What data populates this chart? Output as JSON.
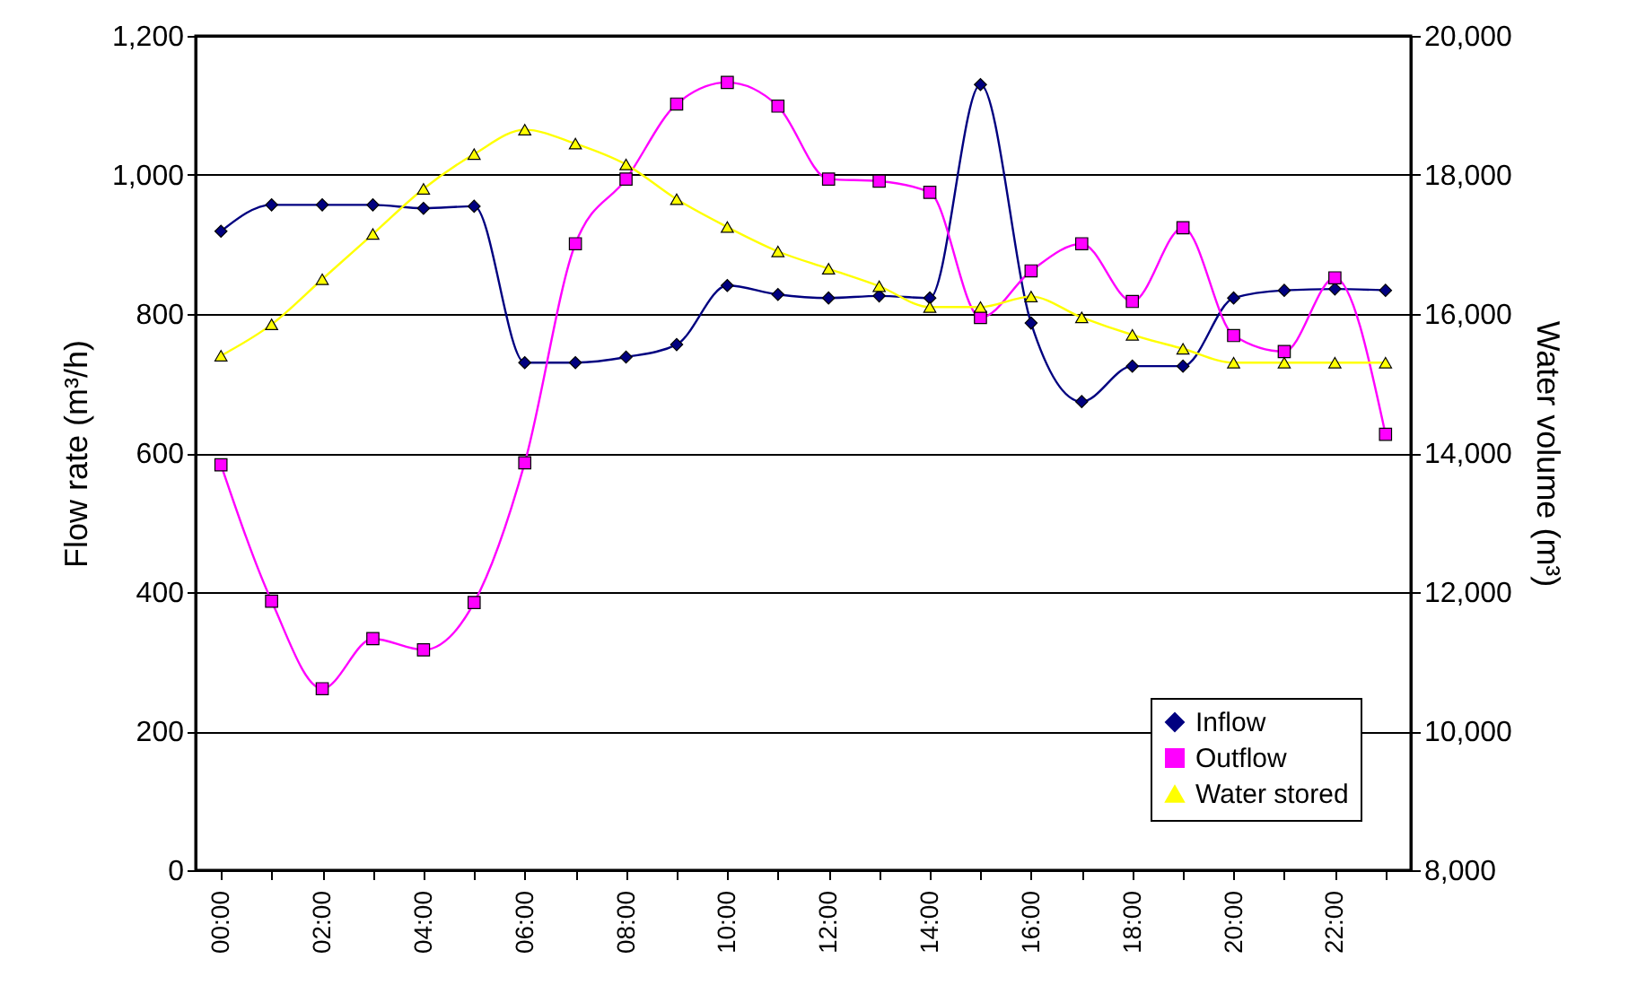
{
  "chart_data": {
    "type": "line",
    "xlabel": null,
    "ylabel": "Flow rate (m³/h)",
    "y2label": "Water volume (m³)",
    "categories": [
      "00:00",
      null,
      "02:00",
      null,
      "04:00",
      null,
      "06:00",
      null,
      "08:00",
      null,
      "10:00",
      null,
      "12:00",
      null,
      "14:00",
      null,
      "16:00",
      null,
      "18:00",
      null,
      "20:00",
      null,
      "22:00",
      null
    ],
    "series": [
      {
        "name": "Inflow",
        "color": "#000080",
        "marker": "diamond",
        "values": [
          919,
          957,
          957,
          957,
          952,
          955,
          730,
          730,
          738,
          756,
          841,
          828,
          823,
          826,
          823,
          1130,
          787,
          674,
          725,
          725,
          823,
          834,
          836,
          834
        ]
      },
      {
        "name": "Outflow",
        "color": "#ff00ff",
        "marker": "square",
        "values": [
          583,
          387,
          261,
          333,
          317,
          385,
          586,
          901,
          994,
          1102,
          1133,
          1099,
          994,
          991,
          975,
          795,
          862,
          901,
          818,
          924,
          769,
          746,
          852,
          627
        ]
      },
      {
        "name": "Water stored",
        "color": "#ffff00",
        "marker": "triangle",
        "axis": "y2",
        "values": [
          15400,
          15850,
          16500,
          17150,
          17800,
          18300,
          18650,
          18450,
          18150,
          17650,
          17250,
          16900,
          16650,
          16400,
          16100,
          16100,
          16250,
          15950,
          15700,
          15500,
          15300,
          15300,
          15300,
          15300
        ]
      }
    ],
    "ylim": [
      0,
      1200
    ],
    "yticks": [
      0,
      200,
      400,
      600,
      800,
      {
        "value": 1000,
        "label": "1,000"
      },
      {
        "value": 1200,
        "label": "1,200"
      }
    ],
    "y2lim": [
      8000,
      20000
    ],
    "y2ticks": [
      {
        "value": 8000,
        "label": "8,000"
      },
      {
        "value": 10000,
        "label": "10,000"
      },
      {
        "value": 12000,
        "label": "12,000"
      },
      {
        "value": 14000,
        "label": "14,000"
      },
      {
        "value": 16000,
        "label": "16,000"
      },
      {
        "value": 18000,
        "label": "18,000"
      },
      {
        "value": 20000,
        "label": "20,000"
      }
    ],
    "grid": "y",
    "legend": "bottom right",
    "line_style": "solid"
  }
}
